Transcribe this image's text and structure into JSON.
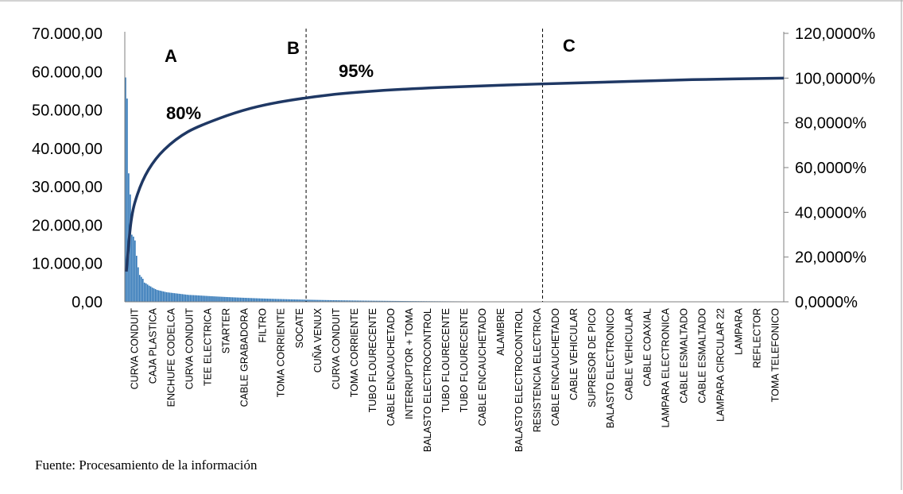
{
  "chart_data": {
    "type": "bar",
    "title": "",
    "xlabel": "",
    "ylabel": "",
    "ylim": [
      0,
      70000
    ],
    "y2lim": [
      0,
      120
    ],
    "y_ticks": [
      "0,00",
      "10.000,00",
      "20.000,00",
      "30.000,00",
      "40.000,00",
      "50.000,00",
      "60.000,00",
      "70.000,00"
    ],
    "y2_ticks": [
      "0,0000%",
      "20,0000%",
      "40,0000%",
      "60,0000%",
      "80,0000%",
      "100,0000%",
      "120,0000%"
    ],
    "category_labels": [
      "CURVA CONDUIT",
      "CAJA PLASTICA",
      "ENCHUFE CODELCA",
      "CURVA CONDUIT",
      "TEE ELECTRICA",
      "STARTER",
      "CABLE GRABADORA",
      "FILTRO",
      "TOMA CORRIENTE",
      "SOCATE",
      "CUÑA VENUX",
      "CURVA CONDUIT",
      "TOMA CORRIENTE",
      "TUBO FLOURECENTE",
      "CABLE ENCAUCHETADO",
      "INTERRUPTOR + TOMA",
      "BALASTO ELECTROCONTROL",
      "TUBO FLOURECENTE",
      "TUBO FLOURECENTE",
      "CABLE ENCAUCHETADO",
      "ALAMBRE",
      "BALASTO ELECTROCONTROL",
      "RESISTENCIA ELECTRICA",
      "CABLE ENCAUCHETADO",
      "CABLE VEHICULAR",
      "SUPRESOR DE PICO",
      "BALASTO ELECTRONICO",
      "CABLE VEHICULAR",
      "CABLE COAXIAL",
      "LAMPARA ELECTRONICA",
      "CABLE ESMALTADO",
      "CABLE ESMALTADO",
      "LAMPARA CIRCULAR 22",
      "LAMPARA",
      "REFLECTOR",
      "TOMA TELEFONICO"
    ],
    "n_items": 418,
    "bar_values_first": [
      58500,
      53000,
      33500,
      28000,
      17500,
      17000,
      16000,
      12000,
      9000,
      7000,
      6500,
      6000,
      5000,
      4800,
      4500,
      4200,
      4000,
      3700,
      3500,
      3300,
      3100,
      3000,
      2900,
      2800,
      2700,
      2600,
      2500,
      2450,
      2400,
      2350,
      2300,
      2250,
      2200,
      2150,
      2100,
      2050,
      2000,
      1950,
      1900,
      1850,
      1800,
      1780,
      1760,
      1740,
      1720,
      1700
    ],
    "cumulative_pct_points": [
      [
        1,
        13.5
      ],
      [
        4,
        36
      ],
      [
        8,
        48
      ],
      [
        15,
        59
      ],
      [
        25,
        68
      ],
      [
        40,
        76
      ],
      [
        60,
        82
      ],
      [
        80,
        86.5
      ],
      [
        100,
        89.5
      ],
      [
        130,
        92.5
      ],
      [
        160,
        94.3
      ],
      [
        200,
        95.8
      ],
      [
        260,
        97.3
      ],
      [
        320,
        98.5
      ],
      [
        360,
        99.3
      ],
      [
        418,
        100
      ]
    ],
    "series": [
      {
        "name": "",
        "kind": "bar",
        "color": "#2e75b6"
      },
      {
        "name": "",
        "kind": "line",
        "axis": "right",
        "color": "#1f3864"
      }
    ],
    "annotations": [
      {
        "id": "zone-a",
        "text": "A"
      },
      {
        "id": "zone-b",
        "text": "B"
      },
      {
        "id": "zone-c",
        "text": "C"
      },
      {
        "id": "pct-80",
        "text": "80%"
      },
      {
        "id": "pct-95",
        "text": "95%"
      }
    ],
    "zone_boundaries_item_index": [
      115,
      265
    ],
    "grid": false,
    "legend": "none"
  },
  "source_note": "Fuente: Procesamiento de la información"
}
